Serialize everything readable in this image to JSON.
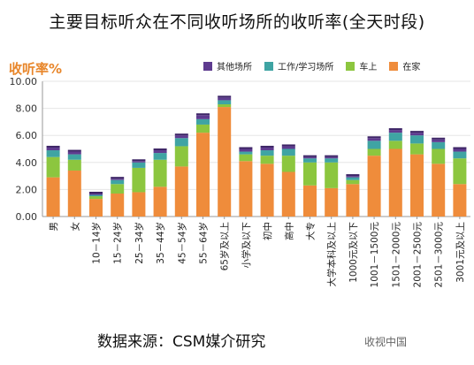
{
  "title": "主要目标听众在不同收听场所的收听率(全天时段)",
  "source_note": "数据来源：CSM媒介研究",
  "watermark": "收视中国",
  "colors": {
    "other": "#5e3b8f",
    "work_study": "#3fa4a3",
    "car": "#8cc63f",
    "home": "#ef8c3b",
    "axis": "#999999",
    "grid": "#e6e6e6",
    "ylabel": "#e8862a",
    "plot_bg": "#ffffff"
  },
  "chart_data": {
    "type": "bar",
    "stacked": true,
    "title": "主要目标听众在不同收听场所的收听率(全天时段)",
    "ylabel": "收听率%",
    "ylim": [
      0,
      10
    ],
    "yticks": [
      "0.00",
      "2.00",
      "4.00",
      "6.00",
      "8.00",
      "10.00"
    ],
    "grid": true,
    "legend_position": "top-right",
    "categories": [
      "男",
      "女",
      "10－14岁",
      "15－24岁",
      "25－34岁",
      "35－44岁",
      "45－54岁",
      "55－64岁",
      "65岁及以上",
      "小学及以下",
      "初中",
      "高中",
      "大专",
      "大学本科及以上",
      "1000元及以下",
      "1001－1500元",
      "1501－2000元",
      "2001－2500元",
      "2501－3000元",
      "3001元及以上"
    ],
    "series": [
      {
        "name": "在家",
        "key": "home",
        "values": [
          2.9,
          3.4,
          1.3,
          1.7,
          1.8,
          2.2,
          3.7,
          6.2,
          8.1,
          4.1,
          3.9,
          3.3,
          2.3,
          2.1,
          2.4,
          4.5,
          5.0,
          4.6,
          3.9,
          2.4
        ]
      },
      {
        "name": "车上",
        "key": "car",
        "values": [
          1.5,
          0.8,
          0.2,
          0.7,
          1.8,
          2.0,
          1.5,
          0.6,
          0.2,
          0.5,
          0.6,
          1.2,
          1.7,
          1.9,
          0.3,
          0.5,
          0.6,
          0.8,
          1.1,
          1.9
        ]
      },
      {
        "name": "工作/学习场所",
        "key": "work_study",
        "values": [
          0.5,
          0.4,
          0.1,
          0.3,
          0.4,
          0.5,
          0.6,
          0.4,
          0.3,
          0.2,
          0.4,
          0.5,
          0.3,
          0.3,
          0.2,
          0.6,
          0.6,
          0.6,
          0.5,
          0.5
        ]
      },
      {
        "name": "其他场所",
        "key": "other",
        "values": [
          0.2,
          0.2,
          0.1,
          0.1,
          0.1,
          0.2,
          0.2,
          0.3,
          0.2,
          0.2,
          0.2,
          0.2,
          0.1,
          0.1,
          0.1,
          0.2,
          0.2,
          0.2,
          0.2,
          0.2
        ]
      }
    ]
  }
}
